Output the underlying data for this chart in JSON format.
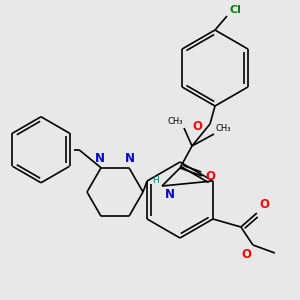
{
  "bg_color": "#e8e8e8",
  "atom_colors": {
    "N": "#0000cc",
    "O": "#ff0000",
    "Cl": "#008000",
    "H": "#008080"
  },
  "bond_color": "#000000",
  "lw": 1.2,
  "fs": 7.5
}
